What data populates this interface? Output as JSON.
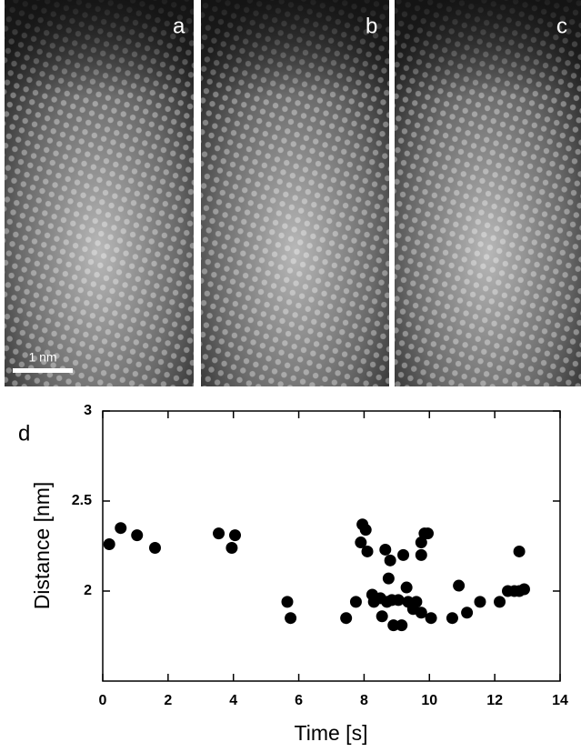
{
  "panels": [
    {
      "label": "a"
    },
    {
      "label": "b"
    },
    {
      "label": "c"
    }
  ],
  "scale_bar": "1 nm",
  "chart_data": {
    "type": "scatter",
    "panel_label": "d",
    "x_label": "Time  [s]",
    "y_label": "Distance  [nm]",
    "x": [
      0.2,
      0.55,
      1.05,
      1.6,
      3.55,
      3.95,
      4.05,
      5.65,
      5.75,
      7.45,
      7.75,
      7.9,
      7.95,
      8.05,
      8.1,
      8.25,
      8.3,
      8.5,
      8.55,
      8.7,
      8.65,
      8.8,
      8.75,
      8.85,
      8.9,
      9.05,
      9.15,
      9.2,
      9.3,
      9.35,
      9.5,
      9.6,
      9.75,
      9.75,
      9.75,
      9.85,
      9.95,
      10.05,
      10.7,
      10.9,
      11.15,
      11.55,
      12.15,
      12.4,
      12.6,
      12.75,
      12.75,
      12.9
    ],
    "values": [
      2.26,
      2.35,
      2.31,
      2.24,
      2.32,
      2.24,
      2.31,
      1.94,
      1.85,
      1.85,
      1.94,
      2.27,
      2.37,
      2.34,
      2.22,
      1.98,
      1.94,
      1.96,
      1.86,
      1.94,
      2.23,
      2.17,
      2.07,
      1.95,
      1.81,
      1.95,
      1.81,
      2.2,
      2.02,
      1.94,
      1.9,
      1.94,
      2.2,
      1.88,
      2.27,
      2.32,
      2.32,
      1.85,
      1.85,
      2.03,
      1.88,
      1.94,
      1.94,
      2.0,
      2.0,
      2.22,
      2.0,
      2.01
    ],
    "color": "#000000",
    "xlim": [
      0,
      14
    ],
    "xticks": [
      0,
      2,
      4,
      6,
      8,
      10,
      12,
      14
    ],
    "ylim": [
      1.5,
      3
    ],
    "yticks": [
      2,
      2.5,
      3
    ]
  }
}
